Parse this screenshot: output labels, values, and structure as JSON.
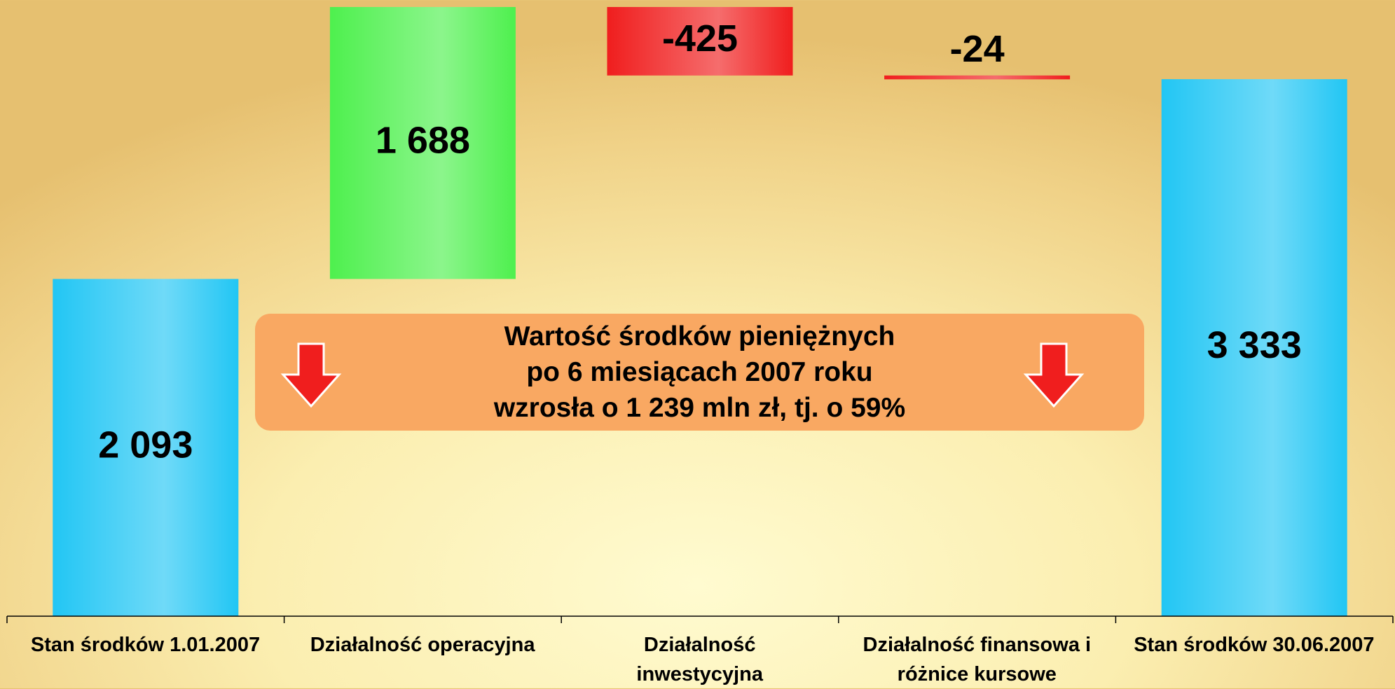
{
  "chart_data": {
    "type": "waterfall",
    "categories": [
      "Stan środków 1.01.2007",
      "Działalność operacyjna",
      "Działalność\ninwestycyjna",
      "Działalność finansowa i\nróżnice kursowe",
      "Stan środków 30.06.2007"
    ],
    "values": [
      2093,
      1688,
      -425,
      -24,
      3333
    ],
    "value_labels": [
      "2 093",
      "1 688",
      "-425",
      "-24",
      "3 333"
    ],
    "measure": [
      "absolute",
      "relative",
      "relative",
      "relative",
      "absolute"
    ],
    "total_color": "#22c6f4",
    "increasing_color": "#4ef04e",
    "decreasing_color": "#f01e1e",
    "annotation": "Wartość środków pieniężnych\npo 6 miesiącach 2007 roku\nwzrosła o 1 239 mln zł, tj. o 59%"
  }
}
